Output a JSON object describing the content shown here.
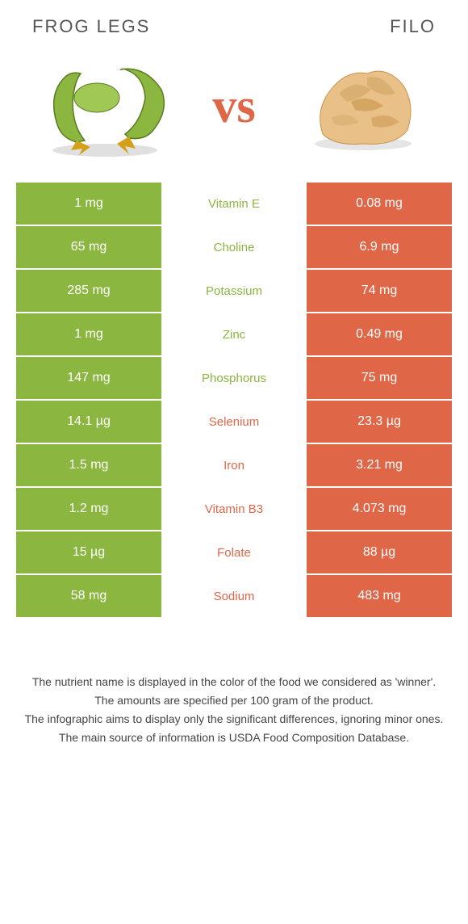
{
  "foodA": {
    "title": "FROG LEGS",
    "color": "#8bb63f"
  },
  "foodB": {
    "title": "FILO",
    "color": "#e06648"
  },
  "vs": "vs",
  "rows": [
    {
      "left": "1 mg",
      "mid": "Vitamin E",
      "right": "0.08 mg",
      "winner": "A"
    },
    {
      "left": "65 mg",
      "mid": "Choline",
      "right": "6.9 mg",
      "winner": "A"
    },
    {
      "left": "285 mg",
      "mid": "Potassium",
      "right": "74 mg",
      "winner": "A"
    },
    {
      "left": "1 mg",
      "mid": "Zinc",
      "right": "0.49 mg",
      "winner": "A"
    },
    {
      "left": "147 mg",
      "mid": "Phosphorus",
      "right": "75 mg",
      "winner": "A"
    },
    {
      "left": "14.1 µg",
      "mid": "Selenium",
      "right": "23.3 µg",
      "winner": "B"
    },
    {
      "left": "1.5 mg",
      "mid": "Iron",
      "right": "3.21 mg",
      "winner": "B"
    },
    {
      "left": "1.2 mg",
      "mid": "Vitamin B3",
      "right": "4.073 mg",
      "winner": "B"
    },
    {
      "left": "15 µg",
      "mid": "Folate",
      "right": "88 µg",
      "winner": "B"
    },
    {
      "left": "58 mg",
      "mid": "Sodium",
      "right": "483 mg",
      "winner": "B"
    }
  ],
  "footer": {
    "line1": "The nutrient name is displayed in the color of the food we considered as 'winner'.",
    "line2": "The amounts are specified per 100 gram of the product.",
    "line3": "The infographic aims to display only the significant differences, ignoring minor ones.",
    "line4": "The main source of information is USDA Food Composition Database."
  }
}
